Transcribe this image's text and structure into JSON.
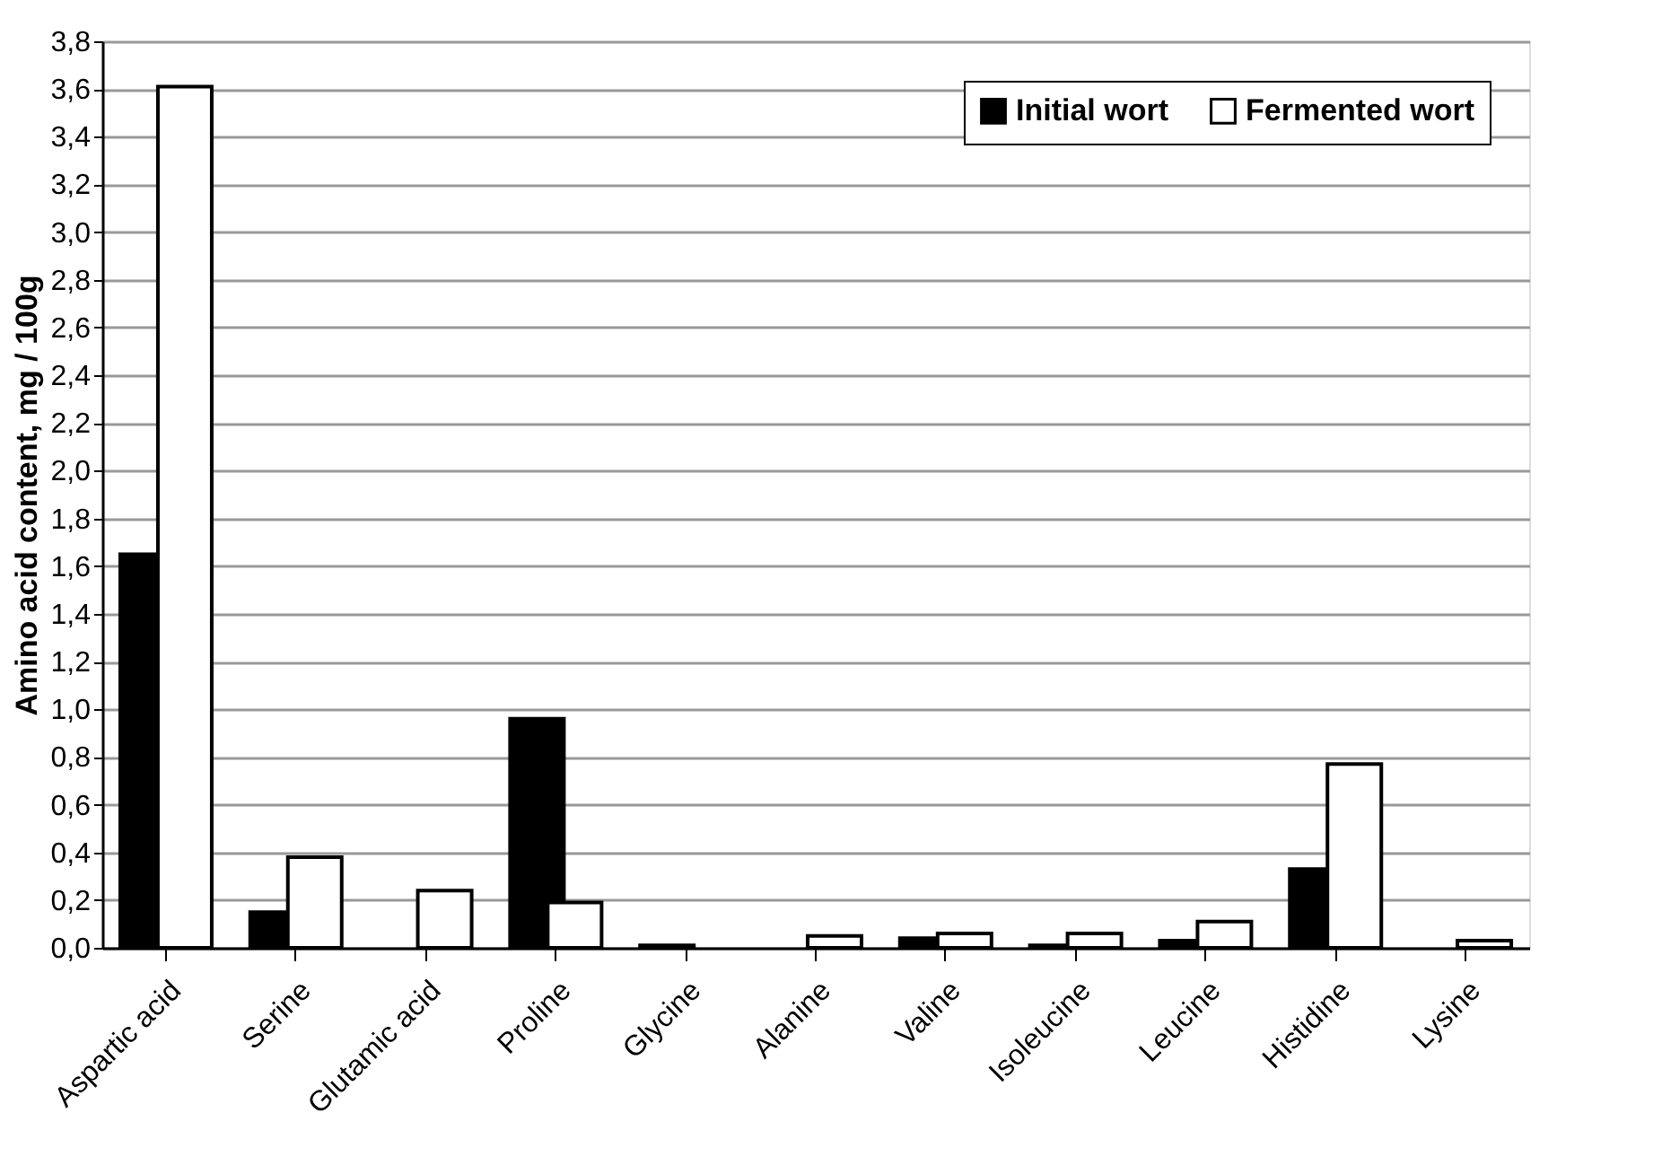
{
  "chart_data": {
    "type": "bar",
    "ylabel": "Amino acid content, mg / 100g",
    "categories": [
      "Aspartic acid",
      "Serine",
      "Glutamic acid",
      "Proline",
      "Glycine",
      "Alanine",
      "Valine",
      "Isoleucine",
      "Leucine",
      "Histidine",
      "Lysine"
    ],
    "series": [
      {
        "name": "Initial wort",
        "color": "#000000",
        "values": [
          1.65,
          0.15,
          0,
          0.96,
          0.01,
          0,
          0.04,
          0.01,
          0.03,
          0.33,
          0
        ]
      },
      {
        "name": "Fermented wort",
        "color": "#ffffff",
        "values": [
          3.61,
          0.38,
          0.24,
          0.19,
          0,
          0.05,
          0.06,
          0.06,
          0.11,
          0.77,
          0.03
        ]
      }
    ],
    "ylim": [
      0,
      3.8
    ],
    "yticks": [
      {
        "value": 0,
        "label": "0,0"
      },
      {
        "value": 0.2,
        "label": "0,2"
      },
      {
        "value": 0.4,
        "label": "0,4"
      },
      {
        "value": 0.6,
        "label": "0,6"
      },
      {
        "value": 0.8,
        "label": "0,8"
      },
      {
        "value": 1.0,
        "label": "1,0"
      },
      {
        "value": 1.2,
        "label": "1,2"
      },
      {
        "value": 1.4,
        "label": "1,4"
      },
      {
        "value": 1.6,
        "label": "1,6"
      },
      {
        "value": 1.8,
        "label": "1,8"
      },
      {
        "value": 2.0,
        "label": "2,0"
      },
      {
        "value": 2.2,
        "label": "2,2"
      },
      {
        "value": 2.4,
        "label": "2,4"
      },
      {
        "value": 2.6,
        "label": "2,6"
      },
      {
        "value": 2.8,
        "label": "2,8"
      },
      {
        "value": 3.0,
        "label": "3,0"
      },
      {
        "value": 3.2,
        "label": "3,2"
      },
      {
        "value": 3.4,
        "label": "3,4"
      },
      {
        "value": 3.6,
        "label": "3,6"
      },
      {
        "value": 3.8,
        "label": "3,8"
      }
    ],
    "grid": "y",
    "legend": "top right"
  }
}
